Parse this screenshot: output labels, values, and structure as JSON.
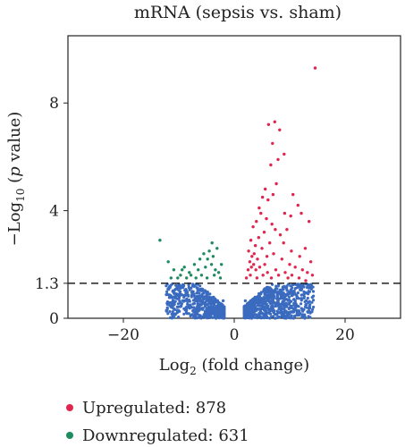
{
  "chart_data": {
    "type": "scatter",
    "title": "mRNA (sepsis vs. sham)",
    "xlabel": {
      "prefix": "Log",
      "sub": "2",
      "suffix": " (fold change)"
    },
    "ylabel": {
      "prefix": "−Log",
      "sub": "10",
      "open": " (",
      "italic": "p",
      "suffix": " value)"
    },
    "xlim": [
      -30,
      30
    ],
    "ylim": [
      0,
      10.5
    ],
    "x_ticks": [
      -20,
      0,
      20
    ],
    "x_tick_labels": [
      "−20",
      "0",
      "20"
    ],
    "y_ticks": [
      0,
      1.3,
      4,
      8
    ],
    "y_tick_labels": [
      "0",
      "1.3",
      "4",
      "8"
    ],
    "threshold": {
      "y": 1.3,
      "style": "dashed",
      "color": "#222222"
    },
    "grid": false,
    "legend_position": "bottom-left",
    "series": [
      {
        "name": "Upregulated",
        "count": 878,
        "color": "#e0254f",
        "points": [
          [
            14.6,
            9.3
          ],
          [
            7.3,
            7.3
          ],
          [
            8.2,
            7.0
          ],
          [
            6.2,
            7.2
          ],
          [
            9.0,
            6.1
          ],
          [
            6.6,
            5.7
          ],
          [
            7.6,
            5.0
          ],
          [
            7.0,
            4.6
          ],
          [
            6.1,
            4.4
          ],
          [
            5.1,
            4.5
          ],
          [
            4.8,
            3.9
          ],
          [
            10.6,
            4.6
          ],
          [
            11.5,
            4.2
          ],
          [
            12.1,
            3.9
          ],
          [
            13.5,
            3.6
          ],
          [
            12.8,
            2.6
          ],
          [
            9.5,
            3.3
          ],
          [
            8.3,
            3.1
          ],
          [
            5.4,
            3.2
          ],
          [
            4.4,
            3.0
          ],
          [
            3.8,
            2.7
          ],
          [
            3.2,
            2.3
          ],
          [
            2.8,
            2.1
          ],
          [
            3.6,
            2.4
          ],
          [
            4.2,
            2.2
          ],
          [
            5.0,
            2.6
          ],
          [
            6.4,
            2.8
          ],
          [
            7.1,
            2.4
          ],
          [
            8.6,
            2.2
          ],
          [
            10.0,
            2.0
          ],
          [
            11.0,
            1.9
          ],
          [
            12.3,
            1.8
          ],
          [
            13.2,
            1.7
          ],
          [
            14.1,
            1.6
          ],
          [
            2.5,
            1.8
          ],
          [
            3.1,
            1.9
          ],
          [
            3.9,
            1.8
          ],
          [
            4.6,
            1.9
          ],
          [
            5.5,
            2.0
          ],
          [
            6.0,
            1.7
          ],
          [
            7.5,
            1.8
          ],
          [
            9.2,
            1.7
          ],
          [
            10.4,
            1.6
          ],
          [
            2.2,
            1.5
          ],
          [
            2.9,
            1.6
          ],
          [
            4.1,
            1.5
          ],
          [
            5.2,
            1.6
          ],
          [
            6.7,
            1.5
          ],
          [
            8.0,
            1.6
          ],
          [
            9.7,
            1.5
          ],
          [
            11.7,
            1.5
          ],
          [
            12.9,
            1.4
          ],
          [
            3.4,
            3.4
          ],
          [
            4.0,
            3.6
          ],
          [
            5.8,
            3.7
          ],
          [
            6.8,
            3.5
          ],
          [
            8.9,
            2.8
          ],
          [
            10.3,
            2.5
          ],
          [
            11.8,
            2.3
          ],
          [
            4.5,
            4.1
          ],
          [
            5.6,
            4.8
          ],
          [
            6.9,
            6.5
          ],
          [
            7.9,
            5.9
          ],
          [
            10.2,
            3.8
          ],
          [
            9.1,
            3.9
          ],
          [
            7.4,
            3.3
          ],
          [
            3.0,
            2.9
          ],
          [
            2.6,
            2.5
          ],
          [
            3.5,
            2.0
          ],
          [
            5.9,
            2.3
          ],
          [
            13.8,
            2.1
          ]
        ]
      },
      {
        "name": "Downregulated",
        "count": 631,
        "color": "#1d8a5f",
        "points": [
          [
            -13.4,
            2.9
          ],
          [
            -11.9,
            2.1
          ],
          [
            -10.9,
            1.8
          ],
          [
            -9.7,
            1.6
          ],
          [
            -9.0,
            1.9
          ],
          [
            -8.1,
            1.7
          ],
          [
            -7.2,
            2.0
          ],
          [
            -6.5,
            1.8
          ],
          [
            -5.9,
            1.6
          ],
          [
            -4.8,
            2.2
          ],
          [
            -4.1,
            2.0
          ],
          [
            -3.4,
            1.8
          ],
          [
            -2.8,
            1.7
          ],
          [
            -4.5,
            2.5
          ],
          [
            -3.8,
            2.3
          ],
          [
            -3.1,
            2.6
          ],
          [
            -5.2,
            1.9
          ],
          [
            -6.9,
            1.5
          ],
          [
            -8.6,
            1.5
          ],
          [
            -10.2,
            1.5
          ],
          [
            -11.4,
            1.5
          ],
          [
            -7.8,
            1.6
          ],
          [
            -2.5,
            1.5
          ],
          [
            -3.6,
            1.6
          ],
          [
            -4.9,
            1.5
          ],
          [
            -6.2,
            2.2
          ],
          [
            -9.4,
            1.8
          ],
          [
            -2.3,
            2.0
          ],
          [
            -5.5,
            2.4
          ],
          [
            -4.0,
            2.8
          ]
        ]
      },
      {
        "name": "",
        "color": "#3a6bbf",
        "points": [
          [
            -11,
            0.65
          ],
          [
            -9,
            0.65
          ],
          [
            -7,
            0.65
          ],
          [
            -5,
            0.65
          ],
          [
            -3,
            0.65
          ],
          [
            -2,
            0.65
          ],
          [
            2,
            0.65
          ],
          [
            3,
            0.65
          ],
          [
            5,
            0.65
          ],
          [
            7,
            0.65
          ],
          [
            9,
            0.65
          ],
          [
            11,
            0.65
          ],
          [
            13,
            0.65
          ]
        ]
      }
    ]
  },
  "legend": [
    {
      "label": "Upregulated: 878",
      "color": "#e0254f"
    },
    {
      "label": "Downregulated: 631",
      "color": "#1d8a5f"
    }
  ]
}
